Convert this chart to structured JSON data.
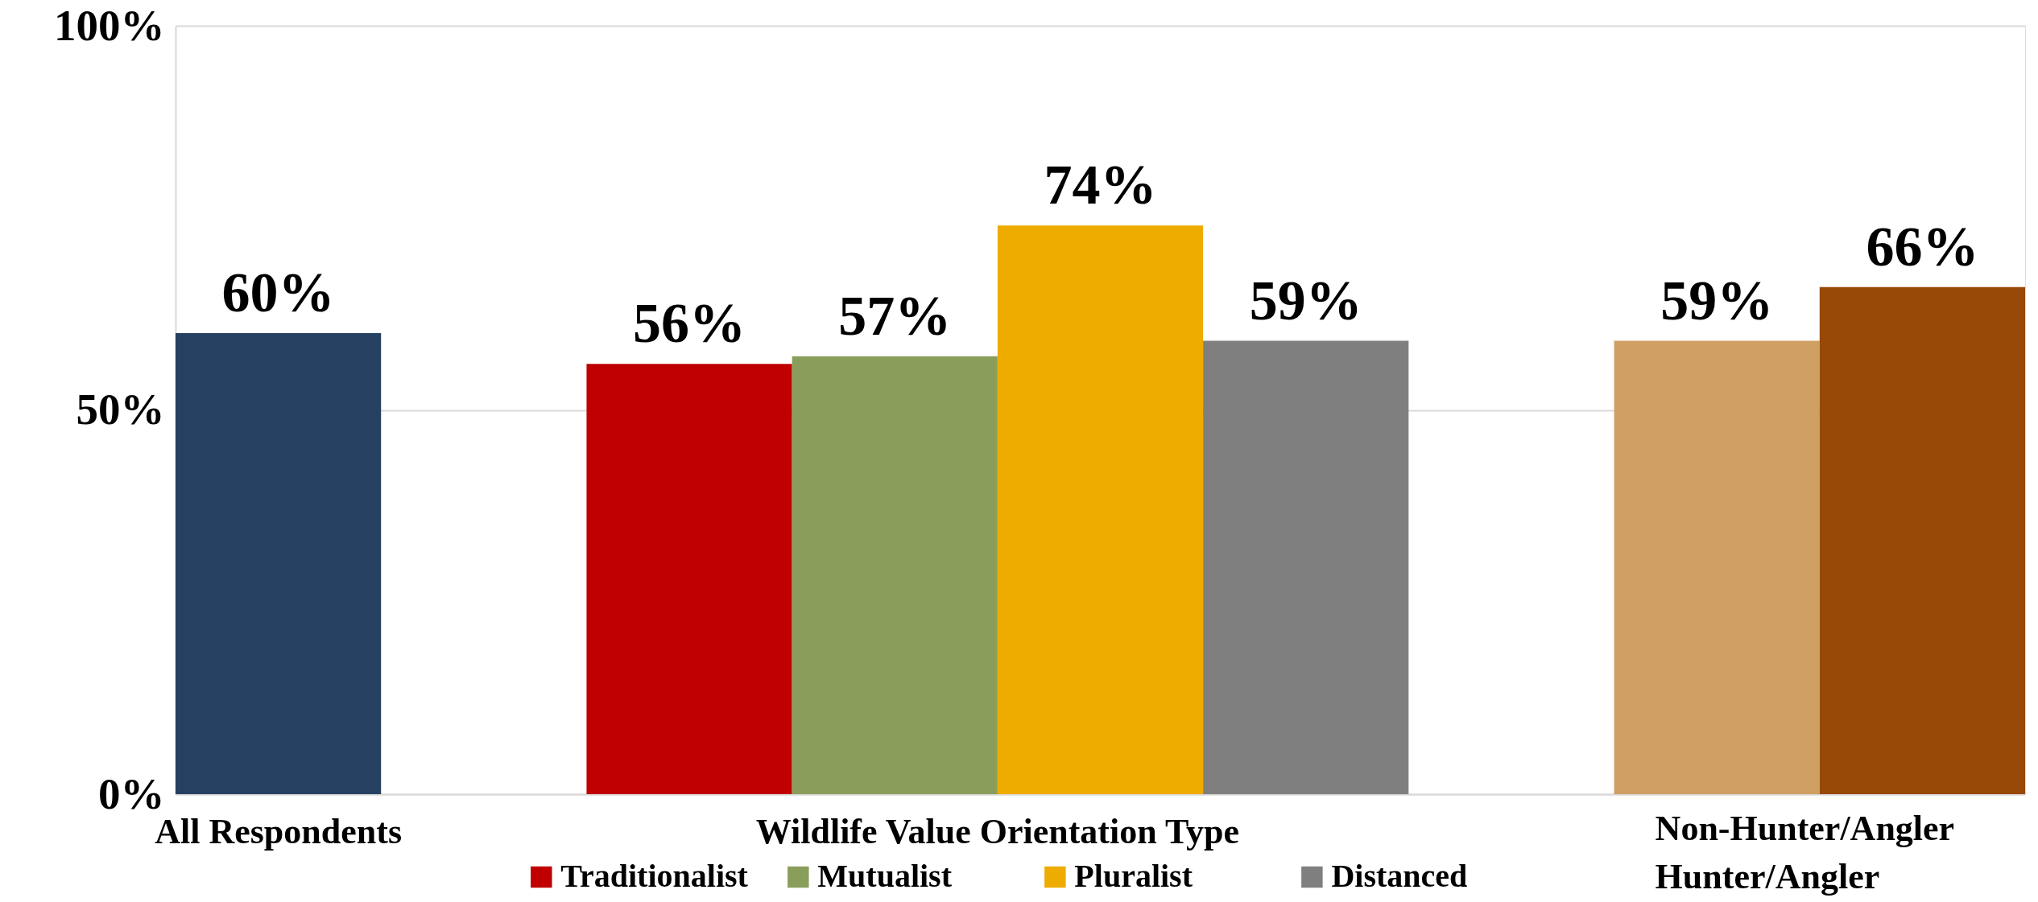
{
  "chart_data": {
    "type": "bar",
    "categories": [
      "All Respondents",
      "Wildlife Value Orientation Type",
      null
    ],
    "series": [
      {
        "color": "#264061",
        "values": [
          60,
          null,
          null
        ],
        "value_labels": [
          "60%",
          null,
          null
        ]
      },
      {
        "name": "Traditionalist",
        "color": "#c00000",
        "values": [
          null,
          56,
          null
        ],
        "value_labels": [
          null,
          "56%",
          null
        ]
      },
      {
        "name": "Mutualist",
        "color": "#8a9e5c",
        "values": [
          null,
          57,
          null
        ],
        "value_labels": [
          null,
          "57%",
          null
        ]
      },
      {
        "name": "Pluralist",
        "color": "#eeab00",
        "values": [
          null,
          74,
          null
        ],
        "value_labels": [
          null,
          "74%",
          null
        ]
      },
      {
        "name": "Distanced",
        "color": "#7f7f7f",
        "values": [
          null,
          59,
          null
        ],
        "value_labels": [
          null,
          "59%",
          null
        ]
      },
      {
        "name": "Non-Hunter/Angler",
        "color": "#d09f63",
        "values": [
          null,
          null,
          59
        ],
        "value_labels": [
          null,
          null,
          "59%"
        ]
      },
      {
        "name": "Hunter/Angler",
        "color": "#984807",
        "values": [
          null,
          null,
          66
        ],
        "value_labels": [
          null,
          null,
          "66%"
        ]
      }
    ],
    "ylim": [
      0,
      100
    ],
    "yticks": [
      {
        "value": 0,
        "label": "0%"
      },
      {
        "value": 50,
        "label": "50%"
      },
      {
        "value": 100,
        "label": "100%"
      }
    ],
    "grid": "y",
    "legend": "bottom"
  }
}
